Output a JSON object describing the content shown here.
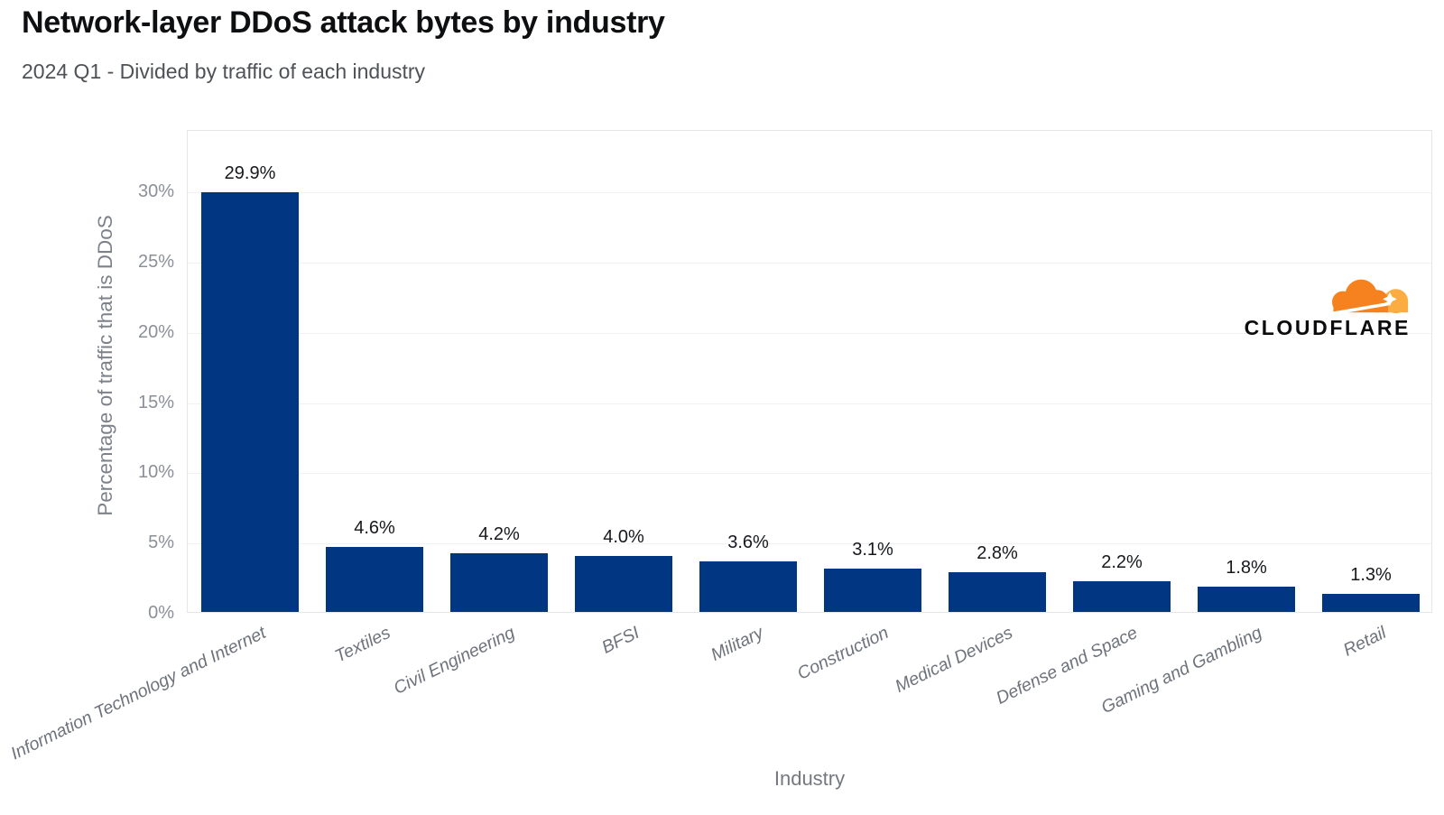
{
  "header": {
    "title": "Network-layer DDoS attack bytes by industry",
    "subtitle": "2024 Q1 - Divided by traffic of each industry"
  },
  "branding": {
    "wordmark": "CLOUDFLARE",
    "cloud_icon": "cloudflare-cloud-icon",
    "colors": {
      "cloud_primary": "#F6821F",
      "cloud_secondary": "#FBAD41",
      "flare": "#FFFFFF",
      "wordmark_text": "#0C0C0E"
    }
  },
  "chart_data": {
    "type": "bar",
    "title": "Network-layer DDoS attack bytes by industry",
    "subtitle": "2024 Q1 - Divided by traffic of each industry",
    "xlabel": "Industry",
    "ylabel": "Percentage of traffic that is DDoS",
    "categories": [
      "Information Technology and Internet",
      "Textiles",
      "Civil Engineering",
      "BFSI",
      "Military",
      "Construction",
      "Medical Devices",
      "Defense and Space",
      "Gaming and Gambling",
      "Retail"
    ],
    "values": [
      29.9,
      4.6,
      4.2,
      4.0,
      3.6,
      3.1,
      2.8,
      2.2,
      1.8,
      1.3
    ],
    "data_labels": [
      "29.9%",
      "4.6%",
      "4.2%",
      "4.0%",
      "3.6%",
      "3.1%",
      "2.8%",
      "2.2%",
      "1.8%",
      "1.3%"
    ],
    "y_ticks": [
      {
        "value": 0,
        "label": "0%"
      },
      {
        "value": 5,
        "label": "5%"
      },
      {
        "value": 10,
        "label": "10%"
      },
      {
        "value": 15,
        "label": "15%"
      },
      {
        "value": 20,
        "label": "20%"
      },
      {
        "value": 25,
        "label": "25%"
      },
      {
        "value": 30,
        "label": "30%"
      }
    ],
    "ylim": [
      0,
      34.4
    ],
    "grid": true,
    "legend": "none",
    "bar_color": "#003682",
    "gridline_color": "#f0f1f3",
    "axis_text_color": "#8b9097",
    "category_text_color": "#6e737b"
  }
}
